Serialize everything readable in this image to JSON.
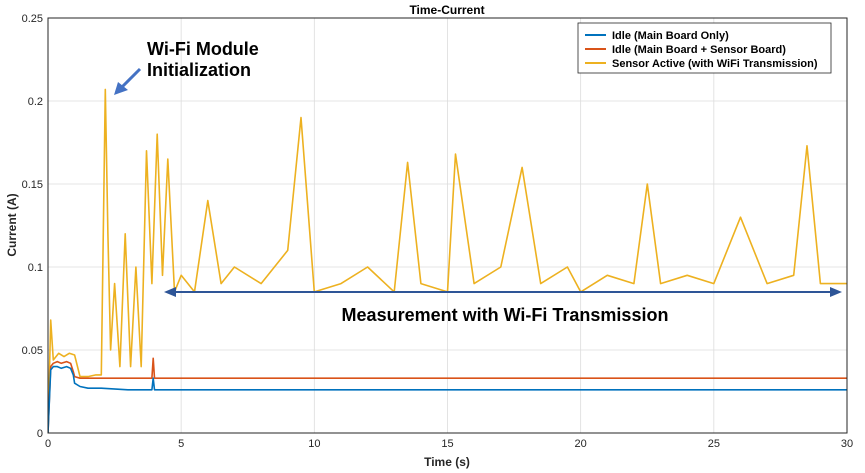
{
  "chart_data": {
    "type": "line",
    "title": "Time-Current",
    "xlabel": "Time (s)",
    "ylabel": "Current (A)",
    "xlim": [
      0,
      30
    ],
    "ylim": [
      0,
      0.25
    ],
    "xticks": [
      0,
      5,
      10,
      15,
      20,
      25,
      30
    ],
    "xtick_labels": [
      "0",
      "5",
      "10",
      "15",
      "20",
      "25",
      "30"
    ],
    "yticks": [
      0,
      0.05,
      0.1,
      0.15,
      0.2,
      0.25
    ],
    "ytick_labels": [
      "0",
      "0.05",
      "0.1",
      "0.15",
      "0.2",
      "0.25"
    ],
    "grid": true,
    "legend_position": "top-right",
    "series": [
      {
        "name": "Idle (Main Board Only)",
        "color": "#0072BD",
        "x": [
          0,
          0.1,
          0.2,
          0.35,
          0.5,
          0.7,
          0.85,
          0.95,
          1.0,
          1.2,
          1.5,
          2,
          3,
          3.9,
          3.95,
          4.0,
          4.1,
          5,
          8,
          10,
          15,
          20,
          25,
          30
        ],
        "y": [
          0.0,
          0.038,
          0.04,
          0.04,
          0.039,
          0.04,
          0.039,
          0.035,
          0.03,
          0.028,
          0.027,
          0.027,
          0.026,
          0.026,
          0.033,
          0.026,
          0.026,
          0.026,
          0.026,
          0.026,
          0.026,
          0.026,
          0.026,
          0.026
        ]
      },
      {
        "name": "Idle (Main Board + Sensor Board)",
        "color": "#D95319",
        "x": [
          0,
          0.1,
          0.2,
          0.35,
          0.5,
          0.7,
          0.85,
          0.95,
          1.0,
          1.2,
          1.5,
          2,
          3,
          3.9,
          3.95,
          4.0,
          4.1,
          5,
          8,
          10,
          15,
          20,
          25,
          30
        ],
        "y": [
          0.0,
          0.04,
          0.042,
          0.043,
          0.042,
          0.043,
          0.042,
          0.037,
          0.034,
          0.033,
          0.033,
          0.033,
          0.033,
          0.033,
          0.045,
          0.033,
          0.033,
          0.033,
          0.033,
          0.033,
          0.033,
          0.033,
          0.033,
          0.033
        ]
      },
      {
        "name": "Sensor Active (with WiFi Transmission)",
        "color": "#EDB120",
        "x": [
          0,
          0.1,
          0.2,
          0.4,
          0.6,
          0.8,
          1.0,
          1.2,
          1.5,
          1.8,
          2.0,
          2.15,
          2.25,
          2.35,
          2.5,
          2.7,
          2.9,
          3.1,
          3.3,
          3.5,
          3.7,
          3.9,
          4.1,
          4.3,
          4.5,
          4.75,
          5.0,
          5.5,
          6.0,
          6.5,
          7.0,
          8.0,
          9.0,
          9.5,
          10.0,
          11.0,
          12.0,
          13.0,
          13.5,
          14.0,
          15.0,
          15.3,
          16.0,
          17.0,
          17.8,
          18.5,
          19.5,
          20.0,
          21.0,
          22.0,
          22.5,
          23.0,
          24.0,
          25.0,
          26.0,
          27.0,
          28.0,
          28.5,
          29.0,
          30.0
        ],
        "y": [
          0.0,
          0.068,
          0.044,
          0.048,
          0.046,
          0.048,
          0.047,
          0.034,
          0.034,
          0.035,
          0.035,
          0.207,
          0.12,
          0.05,
          0.09,
          0.04,
          0.12,
          0.04,
          0.1,
          0.04,
          0.17,
          0.09,
          0.18,
          0.095,
          0.165,
          0.085,
          0.095,
          0.085,
          0.14,
          0.09,
          0.1,
          0.09,
          0.11,
          0.19,
          0.085,
          0.09,
          0.1,
          0.085,
          0.163,
          0.09,
          0.085,
          0.168,
          0.09,
          0.1,
          0.16,
          0.09,
          0.1,
          0.085,
          0.095,
          0.09,
          0.15,
          0.09,
          0.095,
          0.09,
          0.13,
          0.09,
          0.095,
          0.173,
          0.09,
          0.09
        ]
      }
    ],
    "annotations": [
      "Wi-Fi Module",
      "Initialization",
      "Measurement with Wi-Fi Transmission"
    ]
  }
}
